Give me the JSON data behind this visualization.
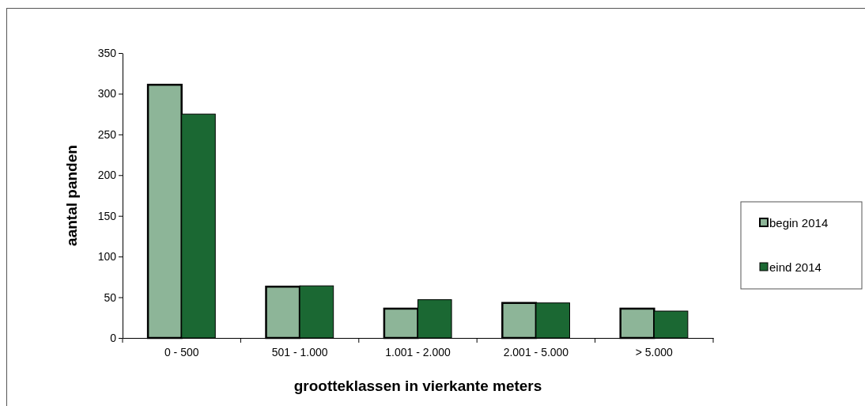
{
  "chart_data": {
    "type": "bar",
    "xlabel": "grootteklassen in vierkante meters",
    "ylabel": "aantal panden",
    "categories": [
      "0 - 500",
      "501 - 1.000",
      "1.001 - 2.000",
      "2.001 - 5.000",
      "> 5.000"
    ],
    "series": [
      {
        "name": "begin 2014",
        "color": "#8db598",
        "values": [
          311,
          63,
          36,
          43,
          36
        ]
      },
      {
        "name": "eind 2014",
        "color": "#1b6833",
        "values": [
          275,
          64,
          47,
          43,
          33
        ]
      }
    ],
    "ylim": [
      0,
      350
    ],
    "yticks": [
      0,
      50,
      100,
      150,
      200,
      250,
      300,
      350
    ],
    "grid": false,
    "legend": "right"
  }
}
